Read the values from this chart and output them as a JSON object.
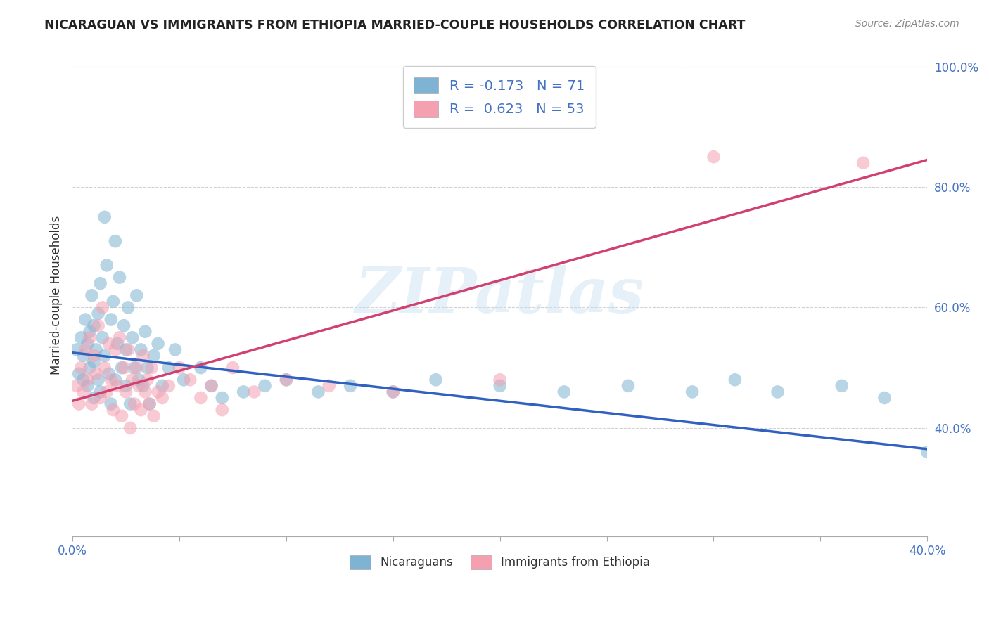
{
  "title": "NICARAGUAN VS IMMIGRANTS FROM ETHIOPIA MARRIED-COUPLE HOUSEHOLDS CORRELATION CHART",
  "source": "Source: ZipAtlas.com",
  "ylabel": "Married-couple Households",
  "legend_labels": [
    "Nicaraguans",
    "Immigrants from Ethiopia"
  ],
  "blue_color": "#7fb3d3",
  "pink_color": "#f4a0b0",
  "blue_line_color": "#3060c0",
  "pink_line_color": "#d04070",
  "r_blue": -0.173,
  "r_pink": 0.623,
  "n_blue": 71,
  "n_pink": 53,
  "xlim": [
    0.0,
    0.4
  ],
  "ylim": [
    0.22,
    1.02
  ],
  "yticks": [
    0.4,
    0.6,
    0.8,
    1.0
  ],
  "ytick_labels": [
    "40.0%",
    "60.0%",
    "80.0%",
    "100.0%"
  ],
  "blue_scatter_x": [
    0.002,
    0.003,
    0.004,
    0.005,
    0.005,
    0.006,
    0.007,
    0.007,
    0.008,
    0.008,
    0.009,
    0.01,
    0.01,
    0.01,
    0.011,
    0.012,
    0.012,
    0.013,
    0.013,
    0.014,
    0.015,
    0.015,
    0.016,
    0.017,
    0.018,
    0.018,
    0.019,
    0.02,
    0.02,
    0.021,
    0.022,
    0.023,
    0.024,
    0.025,
    0.025,
    0.026,
    0.027,
    0.028,
    0.029,
    0.03,
    0.031,
    0.032,
    0.033,
    0.034,
    0.035,
    0.036,
    0.038,
    0.04,
    0.042,
    0.045,
    0.048,
    0.052,
    0.06,
    0.065,
    0.07,
    0.08,
    0.09,
    0.1,
    0.115,
    0.13,
    0.15,
    0.17,
    0.2,
    0.23,
    0.26,
    0.29,
    0.31,
    0.33,
    0.36,
    0.38,
    0.4
  ],
  "blue_scatter_y": [
    0.53,
    0.49,
    0.55,
    0.52,
    0.48,
    0.58,
    0.47,
    0.54,
    0.5,
    0.56,
    0.62,
    0.51,
    0.57,
    0.45,
    0.53,
    0.59,
    0.48,
    0.64,
    0.46,
    0.55,
    0.75,
    0.52,
    0.67,
    0.49,
    0.58,
    0.44,
    0.61,
    0.71,
    0.48,
    0.54,
    0.65,
    0.5,
    0.57,
    0.53,
    0.47,
    0.6,
    0.44,
    0.55,
    0.5,
    0.62,
    0.48,
    0.53,
    0.47,
    0.56,
    0.5,
    0.44,
    0.52,
    0.54,
    0.47,
    0.5,
    0.53,
    0.48,
    0.5,
    0.47,
    0.45,
    0.46,
    0.47,
    0.48,
    0.46,
    0.47,
    0.46,
    0.48,
    0.47,
    0.46,
    0.47,
    0.46,
    0.48,
    0.46,
    0.47,
    0.45,
    0.36
  ],
  "pink_scatter_x": [
    0.002,
    0.003,
    0.004,
    0.005,
    0.006,
    0.007,
    0.008,
    0.009,
    0.01,
    0.011,
    0.012,
    0.013,
    0.014,
    0.015,
    0.016,
    0.017,
    0.018,
    0.019,
    0.02,
    0.021,
    0.022,
    0.023,
    0.024,
    0.025,
    0.026,
    0.027,
    0.028,
    0.029,
    0.03,
    0.031,
    0.032,
    0.033,
    0.034,
    0.035,
    0.036,
    0.037,
    0.038,
    0.04,
    0.042,
    0.045,
    0.05,
    0.055,
    0.06,
    0.065,
    0.07,
    0.075,
    0.085,
    0.1,
    0.12,
    0.15,
    0.2,
    0.3,
    0.37
  ],
  "pink_scatter_y": [
    0.47,
    0.44,
    0.5,
    0.46,
    0.53,
    0.48,
    0.55,
    0.44,
    0.52,
    0.49,
    0.57,
    0.45,
    0.6,
    0.5,
    0.46,
    0.54,
    0.48,
    0.43,
    0.53,
    0.47,
    0.55,
    0.42,
    0.5,
    0.46,
    0.53,
    0.4,
    0.48,
    0.44,
    0.5,
    0.47,
    0.43,
    0.52,
    0.46,
    0.48,
    0.44,
    0.5,
    0.42,
    0.46,
    0.45,
    0.47,
    0.5,
    0.48,
    0.45,
    0.47,
    0.43,
    0.5,
    0.46,
    0.48,
    0.47,
    0.46,
    0.48,
    0.85,
    0.84
  ],
  "watermark": "ZIPatlas",
  "background_color": "#ffffff",
  "grid_color": "#cccccc"
}
